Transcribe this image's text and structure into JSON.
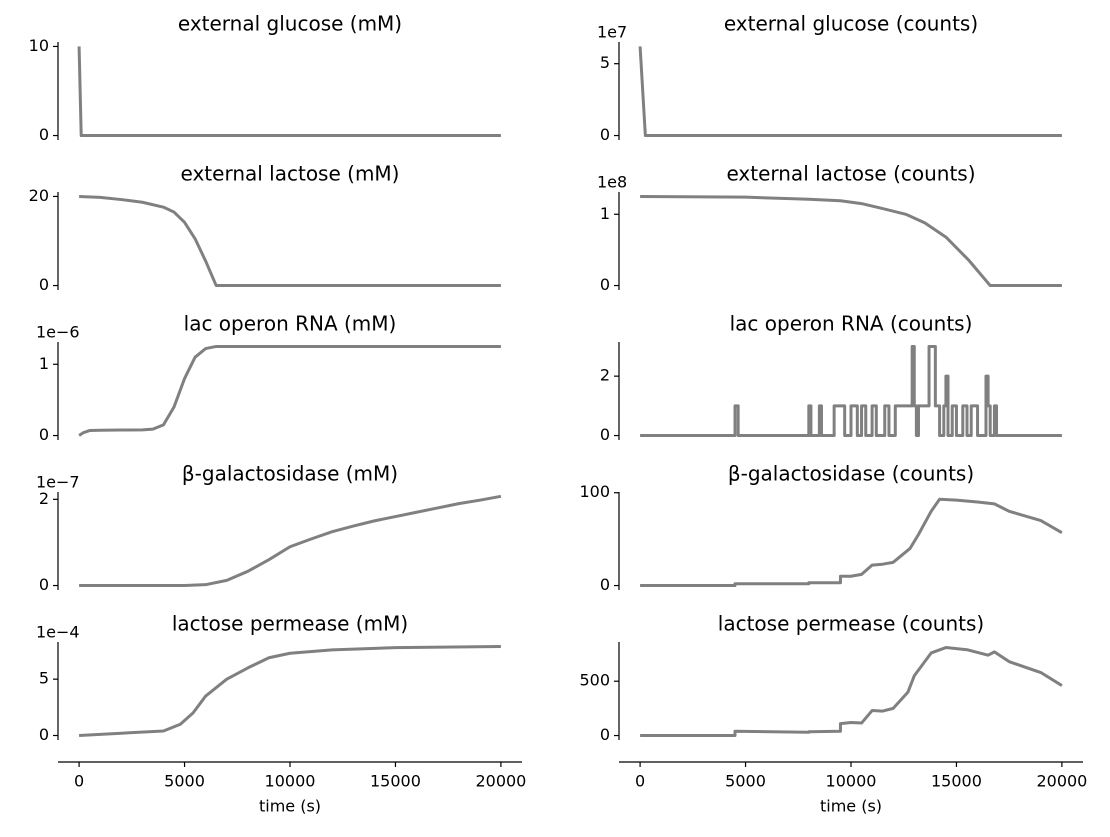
{
  "chart_data": [
    {
      "type": "line",
      "title": "external glucose (mM)",
      "color": "#808080",
      "x": [
        0,
        100,
        20000
      ],
      "values": [
        10,
        0,
        0
      ],
      "xlim": [
        -1000,
        21000
      ],
      "ylim": [
        -0.5,
        10.5
      ],
      "yticks": [
        0,
        10
      ]
    },
    {
      "type": "line",
      "title": "external glucose  (counts)",
      "y_offset_label": "1e7",
      "color": "#808080",
      "x": [
        0,
        250,
        20000
      ],
      "values": [
        6.2,
        0,
        0
      ],
      "xlim": [
        -1000,
        21000
      ],
      "ylim": [
        -0.31,
        6.51
      ],
      "yticks": [
        0,
        5
      ]
    },
    {
      "type": "line",
      "title": "external lactose (mM)",
      "color": "#808080",
      "x": [
        0,
        1000,
        2000,
        3000,
        4000,
        4500,
        5000,
        5500,
        6000,
        6500,
        20000
      ],
      "values": [
        20,
        19.8,
        19.3,
        18.7,
        17.6,
        16.5,
        14.2,
        10.5,
        5.5,
        0,
        0
      ],
      "xlim": [
        -1000,
        21000
      ],
      "ylim": [
        -1,
        21
      ],
      "yticks": [
        0,
        20
      ]
    },
    {
      "type": "line",
      "title": "external lactose (counts)",
      "y_offset_label": "1e8",
      "color": "#808080",
      "x": [
        0,
        5000,
        8000,
        9500,
        10500,
        11500,
        12600,
        13500,
        14000,
        14500,
        15600,
        16600,
        20000
      ],
      "values": [
        1.25,
        1.24,
        1.21,
        1.19,
        1.15,
        1.08,
        1.0,
        0.88,
        0.78,
        0.68,
        0.35,
        0,
        0
      ],
      "xlim": [
        -1000,
        21000
      ],
      "ylim": [
        -0.0625,
        1.3125
      ],
      "yticks": [
        0,
        1
      ]
    },
    {
      "type": "line",
      "title": "lac operon RNA (mM)",
      "y_offset_label": "1e−6",
      "color": "#808080",
      "x": [
        0,
        200,
        500,
        1000,
        2000,
        3000,
        3500,
        4000,
        4500,
        5000,
        5500,
        6000,
        6500,
        20000
      ],
      "values": [
        0,
        0.04,
        0.07,
        0.075,
        0.078,
        0.08,
        0.09,
        0.15,
        0.4,
        0.8,
        1.1,
        1.22,
        1.25,
        1.25
      ],
      "xlim": [
        -1000,
        21000
      ],
      "ylim": [
        -0.0625,
        1.3125
      ],
      "yticks": [
        0,
        1
      ]
    },
    {
      "type": "line",
      "title": "lac operon RNA (counts)",
      "color": "#808080",
      "x": [
        0,
        4500,
        4500,
        4650,
        4650,
        8000,
        8000,
        8100,
        8100,
        8500,
        8500,
        8600,
        8600,
        9200,
        9200,
        9700,
        9700,
        10000,
        10000,
        10300,
        10300,
        10500,
        10500,
        10700,
        10700,
        11000,
        11000,
        11200,
        11200,
        11600,
        11600,
        11800,
        11800,
        12100,
        12100,
        12900,
        12900,
        13000,
        13000,
        13100,
        13100,
        13200,
        13200,
        13700,
        13700,
        14000,
        14000,
        14200,
        14200,
        14400,
        14400,
        14500,
        14500,
        14600,
        14600,
        14800,
        14800,
        15000,
        15000,
        15300,
        15300,
        15500,
        15500,
        15700,
        15700,
        16000,
        16000,
        16400,
        16400,
        16500,
        16500,
        16600,
        16600,
        16800,
        16800,
        16900,
        16900,
        20000
      ],
      "values": [
        0,
        0,
        1,
        1,
        0,
        0,
        1,
        1,
        0,
        0,
        1,
        1,
        0,
        0,
        1,
        1,
        0,
        0,
        1,
        1,
        0,
        0,
        1,
        1,
        0,
        0,
        1,
        1,
        0,
        0,
        1,
        1,
        0,
        0,
        1,
        1,
        3,
        3,
        1,
        1,
        0,
        0,
        1,
        1,
        3,
        3,
        1,
        1,
        0,
        0,
        1,
        1,
        2,
        2,
        0,
        0,
        1,
        1,
        0,
        0,
        1,
        1,
        0,
        0,
        1,
        1,
        0,
        0,
        2,
        2,
        1,
        1,
        0,
        0,
        1,
        1,
        0,
        0
      ],
      "xlim": [
        -1000,
        21000
      ],
      "ylim": [
        -0.15,
        3.15
      ],
      "yticks": [
        0,
        2
      ]
    },
    {
      "type": "line",
      "title": "β-galactosidase (mM)",
      "y_offset_label": "1e−7",
      "color": "#808080",
      "x": [
        0,
        5000,
        6000,
        7000,
        8000,
        9000,
        10000,
        11000,
        12000,
        13000,
        14000,
        15000,
        16000,
        17000,
        18000,
        19000,
        20000
      ],
      "values": [
        0,
        0,
        0.02,
        0.12,
        0.33,
        0.6,
        0.9,
        1.08,
        1.25,
        1.38,
        1.5,
        1.6,
        1.7,
        1.8,
        1.9,
        1.98,
        2.07
      ],
      "xlim": [
        -1000,
        21000
      ],
      "ylim": [
        -0.1035,
        2.17
      ],
      "yticks": [
        0,
        2
      ]
    },
    {
      "type": "line",
      "title": "β-galactosidase (counts)",
      "color": "#808080",
      "x": [
        0,
        4500,
        4500,
        8000,
        8000,
        9500,
        9500,
        10000,
        10500,
        11000,
        11500,
        12000,
        12800,
        13200,
        13800,
        14200,
        15000,
        16000,
        16800,
        17500,
        19000,
        20000
      ],
      "values": [
        0,
        0,
        2,
        2,
        3,
        3,
        10,
        10,
        12,
        22,
        23,
        25,
        40,
        55,
        80,
        93,
        92,
        90,
        88,
        80,
        70,
        57
      ],
      "xlim": [
        -1000,
        21000
      ],
      "ylim": [
        -4.8,
        100.8
      ],
      "yticks": [
        0,
        100
      ]
    },
    {
      "type": "line",
      "title": "lactose permease (mM)",
      "y_offset_label": "1e−4",
      "color": "#808080",
      "x": [
        0,
        2000,
        4000,
        4800,
        5400,
        6000,
        7000,
        8000,
        9000,
        10000,
        12000,
        15000,
        20000
      ],
      "values": [
        0,
        0.2,
        0.4,
        1,
        2,
        3.5,
        5,
        6,
        6.9,
        7.3,
        7.6,
        7.8,
        7.9
      ],
      "xlim": [
        -1000,
        21000
      ],
      "ylim": [
        -0.4,
        8.3
      ],
      "yticks": [
        0,
        5
      ],
      "xticks": [
        0,
        5000,
        10000,
        15000,
        20000
      ],
      "xlabel": "time (s)"
    },
    {
      "type": "line",
      "title": "lactose permease (counts)",
      "color": "#808080",
      "x": [
        0,
        4500,
        4500,
        8000,
        8000,
        9500,
        9500,
        10000,
        10500,
        11000,
        11500,
        12000,
        12700,
        13000,
        13800,
        14500,
        15500,
        16500,
        16800,
        17500,
        19000,
        20000
      ],
      "values": [
        0,
        0,
        40,
        30,
        35,
        40,
        110,
        120,
        115,
        230,
        225,
        250,
        400,
        550,
        760,
        810,
        790,
        740,
        770,
        680,
        580,
        460
      ],
      "xlim": [
        -1000,
        21000
      ],
      "ylim": [
        -41,
        861
      ],
      "yticks": [
        0,
        500
      ],
      "xticks": [
        0,
        5000,
        10000,
        15000,
        20000
      ],
      "xlabel": "time (s)"
    }
  ]
}
